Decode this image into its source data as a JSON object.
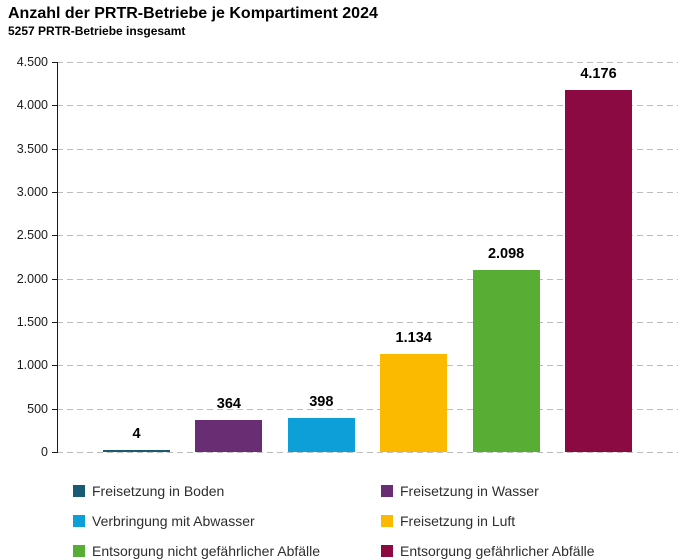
{
  "header": {
    "title": "Anzahl der PRTR-Betriebe je Kompartiment 2024",
    "subtitle": "5257 PRTR-Betriebe insgesamt"
  },
  "chart_data": {
    "type": "bar",
    "title": "Anzahl der PRTR-Betriebe je Kompartiment 2024",
    "subtitle": "5257 PRTR-Betriebe insgesamt",
    "categories": [
      "Freisetzung in Boden",
      "Freisetzung in Wasser",
      "Verbringung mit Abwasser",
      "Freisetzung in Luft",
      "Entsorgung nicht gefährlicher Abfälle",
      "Entsorgung gefährlicher Abfälle"
    ],
    "values": [
      4,
      364,
      398,
      1134,
      2098,
      4176
    ],
    "value_labels": [
      "4",
      "364",
      "398",
      "1.134",
      "2.098",
      "4.176"
    ],
    "colors": [
      "#1a5a75",
      "#682d72",
      "#0da0d8",
      "#fbba00",
      "#58ad34",
      "#8c0a42"
    ],
    "xlabel": "",
    "ylabel": "",
    "ylim": [
      0,
      4500
    ],
    "ytick_step": 500,
    "ytick_values": [
      0,
      500,
      1000,
      1500,
      2000,
      2500,
      3000,
      3500,
      4000,
      4500
    ],
    "ytick_labels": [
      "0",
      "500",
      "1.000",
      "1.500",
      "2.000",
      "2.500",
      "3.000",
      "3.500",
      "4.000",
      "4.500"
    ],
    "grid": "horizontal dashed, on",
    "legend_position": "bottom, two columns"
  },
  "legend": {
    "items": [
      {
        "label": "Freisetzung in Boden",
        "color": "#1a5a75"
      },
      {
        "label": "Freisetzung in Wasser",
        "color": "#682d72"
      },
      {
        "label": "Verbringung mit Abwasser",
        "color": "#0da0d8"
      },
      {
        "label": "Freisetzung in Luft",
        "color": "#fbba00"
      },
      {
        "label": "Entsorgung nicht gefährlicher Abfälle",
        "color": "#58ad34"
      },
      {
        "label": "Entsorgung gefährlicher Abfälle",
        "color": "#8c0a42"
      }
    ]
  }
}
